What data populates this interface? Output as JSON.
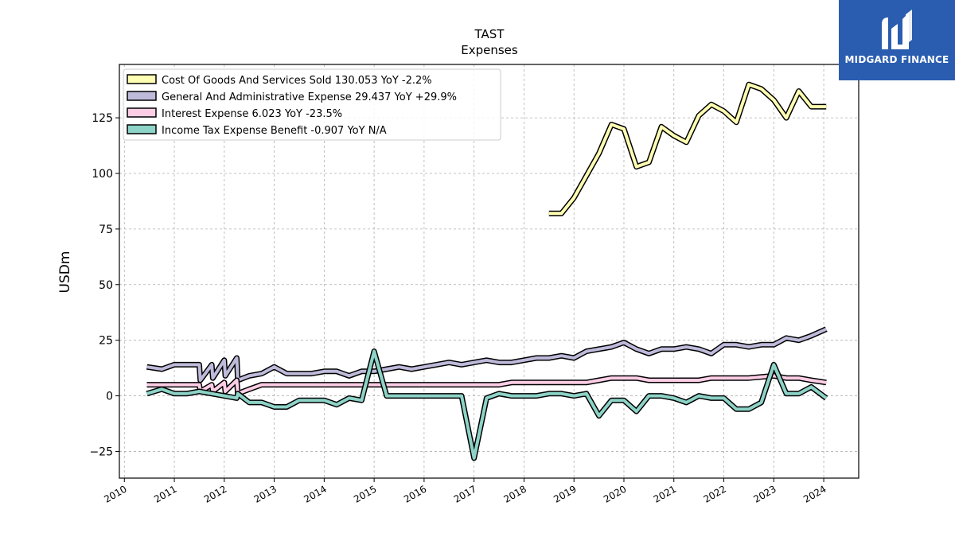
{
  "colors": {
    "background": "#ffffff",
    "grid": "#b0b0b0",
    "brand_box": "#2a5db0",
    "brand_text": "#ffffff"
  },
  "brand": {
    "name": "MIDGARD FINANCE",
    "icon": "midgard-logo-icon"
  },
  "chart_data": {
    "type": "line",
    "title": "TAST",
    "subtitle": "Expenses",
    "xlabel": "",
    "ylabel": "USDm",
    "xlim": [
      2009.9,
      2024.7
    ],
    "ylim": [
      -37,
      149
    ],
    "yticks": [
      -25,
      0,
      25,
      50,
      75,
      100,
      125
    ],
    "ytick_labels": [
      "−25",
      "0",
      "25",
      "50",
      "75",
      "100",
      "125"
    ],
    "xticks": [
      2010,
      2011,
      2012,
      2013,
      2014,
      2015,
      2016,
      2017,
      2018,
      2019,
      2020,
      2021,
      2022,
      2023,
      2024
    ],
    "xtick_labels": [
      "2010",
      "2011",
      "2012",
      "2013",
      "2014",
      "2015",
      "2016",
      "2017",
      "2018",
      "2019",
      "2020",
      "2021",
      "2022",
      "2023",
      "2024"
    ],
    "grid": true,
    "legend_position": "top-left",
    "series": [
      {
        "name": "Cost Of Goods And Services Sold",
        "legend": "Cost Of Goods And Services Sold  130.053 YoY -2.2%",
        "color": "#ffffb3",
        "points": [
          [
            2018.5,
            82
          ],
          [
            2018.75,
            82
          ],
          [
            2019.0,
            89
          ],
          [
            2019.25,
            99
          ],
          [
            2019.5,
            109
          ],
          [
            2019.75,
            122
          ],
          [
            2020.0,
            120
          ],
          [
            2020.25,
            103
          ],
          [
            2020.5,
            105
          ],
          [
            2020.75,
            121
          ],
          [
            2021.0,
            117
          ],
          [
            2021.25,
            114
          ],
          [
            2021.5,
            126
          ],
          [
            2021.75,
            131
          ],
          [
            2022.0,
            128
          ],
          [
            2022.25,
            123
          ],
          [
            2022.5,
            140
          ],
          [
            2022.75,
            138
          ],
          [
            2023.0,
            133
          ],
          [
            2023.25,
            125
          ],
          [
            2023.5,
            137
          ],
          [
            2023.75,
            130
          ],
          [
            2024.05,
            130
          ]
        ]
      },
      {
        "name": "General And Administrative Expense",
        "legend": "General And Administrative Expense  29.437 YoY +29.9%",
        "color": "#bebada",
        "points": [
          [
            2010.45,
            13
          ],
          [
            2010.75,
            12
          ],
          [
            2011.0,
            14
          ],
          [
            2011.25,
            14
          ],
          [
            2011.5,
            14
          ],
          [
            2011.52,
            7
          ],
          [
            2011.75,
            14
          ],
          [
            2011.77,
            8
          ],
          [
            2012.0,
            16
          ],
          [
            2012.02,
            9
          ],
          [
            2012.25,
            17
          ],
          [
            2012.27,
            7
          ],
          [
            2012.5,
            9
          ],
          [
            2012.75,
            10
          ],
          [
            2013.0,
            13
          ],
          [
            2013.25,
            10
          ],
          [
            2013.5,
            10
          ],
          [
            2013.75,
            10
          ],
          [
            2014.0,
            11
          ],
          [
            2014.25,
            11
          ],
          [
            2014.5,
            9
          ],
          [
            2014.75,
            11
          ],
          [
            2015.0,
            11
          ],
          [
            2015.25,
            12
          ],
          [
            2015.5,
            13
          ],
          [
            2015.75,
            12
          ],
          [
            2016.0,
            13
          ],
          [
            2016.25,
            14
          ],
          [
            2016.5,
            15
          ],
          [
            2016.75,
            14
          ],
          [
            2017.0,
            15
          ],
          [
            2017.25,
            16
          ],
          [
            2017.5,
            15
          ],
          [
            2017.75,
            15
          ],
          [
            2018.0,
            16
          ],
          [
            2018.25,
            17
          ],
          [
            2018.5,
            17
          ],
          [
            2018.75,
            18
          ],
          [
            2019.0,
            17
          ],
          [
            2019.25,
            20
          ],
          [
            2019.5,
            21
          ],
          [
            2019.75,
            22
          ],
          [
            2020.0,
            24
          ],
          [
            2020.25,
            21
          ],
          [
            2020.5,
            19
          ],
          [
            2020.75,
            21
          ],
          [
            2021.0,
            21
          ],
          [
            2021.25,
            22
          ],
          [
            2021.5,
            21
          ],
          [
            2021.75,
            19
          ],
          [
            2022.0,
            23
          ],
          [
            2022.25,
            23
          ],
          [
            2022.5,
            22
          ],
          [
            2022.75,
            23
          ],
          [
            2023.0,
            23
          ],
          [
            2023.25,
            26
          ],
          [
            2023.5,
            25
          ],
          [
            2023.75,
            27
          ],
          [
            2024.05,
            30
          ]
        ]
      },
      {
        "name": "Interest Expense",
        "legend": "Interest Expense  6.023 YoY -23.5%",
        "color": "#fccde5",
        "points": [
          [
            2010.45,
            5
          ],
          [
            2010.75,
            5
          ],
          [
            2011.0,
            5
          ],
          [
            2011.25,
            5
          ],
          [
            2011.5,
            5
          ],
          [
            2011.52,
            2
          ],
          [
            2011.75,
            5
          ],
          [
            2011.77,
            2
          ],
          [
            2012.0,
            6
          ],
          [
            2012.02,
            2
          ],
          [
            2012.25,
            7
          ],
          [
            2012.27,
            1
          ],
          [
            2012.5,
            3
          ],
          [
            2012.75,
            5
          ],
          [
            2013.0,
            5
          ],
          [
            2013.5,
            5
          ],
          [
            2014.0,
            5
          ],
          [
            2014.5,
            5
          ],
          [
            2015.0,
            5
          ],
          [
            2015.5,
            5
          ],
          [
            2016.0,
            5
          ],
          [
            2016.5,
            5
          ],
          [
            2017.0,
            5
          ],
          [
            2017.5,
            5
          ],
          [
            2017.75,
            6
          ],
          [
            2018.0,
            6
          ],
          [
            2018.5,
            6
          ],
          [
            2019.0,
            6
          ],
          [
            2019.25,
            6
          ],
          [
            2019.5,
            7
          ],
          [
            2019.75,
            8
          ],
          [
            2020.0,
            8
          ],
          [
            2020.25,
            8
          ],
          [
            2020.5,
            7
          ],
          [
            2020.75,
            7
          ],
          [
            2021.0,
            7
          ],
          [
            2021.25,
            7
          ],
          [
            2021.5,
            7
          ],
          [
            2021.75,
            8
          ],
          [
            2022.0,
            8
          ],
          [
            2022.5,
            8
          ],
          [
            2023.0,
            9
          ],
          [
            2023.25,
            8
          ],
          [
            2023.5,
            8
          ],
          [
            2023.75,
            7
          ],
          [
            2024.05,
            6
          ]
        ]
      },
      {
        "name": "Income Tax Expense Benefit",
        "legend": "Income Tax Expense Benefit  -0.907 YoY N/A",
        "color": "#8dd3c7",
        "points": [
          [
            2010.45,
            1
          ],
          [
            2010.75,
            3
          ],
          [
            2011.0,
            1
          ],
          [
            2011.25,
            1
          ],
          [
            2011.5,
            2
          ],
          [
            2011.75,
            1
          ],
          [
            2012.0,
            0
          ],
          [
            2012.25,
            -1
          ],
          [
            2012.27,
            1
          ],
          [
            2012.5,
            -3
          ],
          [
            2012.75,
            -3
          ],
          [
            2013.0,
            -5
          ],
          [
            2013.25,
            -5
          ],
          [
            2013.5,
            -2
          ],
          [
            2013.75,
            -2
          ],
          [
            2014.0,
            -2
          ],
          [
            2014.25,
            -4
          ],
          [
            2014.5,
            -1
          ],
          [
            2014.75,
            -2
          ],
          [
            2015.0,
            20
          ],
          [
            2015.25,
            0
          ],
          [
            2015.5,
            0
          ],
          [
            2016.0,
            0
          ],
          [
            2016.5,
            0
          ],
          [
            2016.75,
            0
          ],
          [
            2017.0,
            -28
          ],
          [
            2017.25,
            -1
          ],
          [
            2017.5,
            1
          ],
          [
            2017.75,
            0
          ],
          [
            2018.0,
            0
          ],
          [
            2018.25,
            0
          ],
          [
            2018.5,
            1
          ],
          [
            2018.75,
            1
          ],
          [
            2019.0,
            0
          ],
          [
            2019.25,
            1
          ],
          [
            2019.5,
            -9
          ],
          [
            2019.75,
            -2
          ],
          [
            2020.0,
            -2
          ],
          [
            2020.25,
            -7
          ],
          [
            2020.5,
            0
          ],
          [
            2020.75,
            0
          ],
          [
            2021.0,
            -1
          ],
          [
            2021.25,
            -3
          ],
          [
            2021.5,
            0
          ],
          [
            2021.75,
            -1
          ],
          [
            2022.0,
            -1
          ],
          [
            2022.25,
            -6
          ],
          [
            2022.5,
            -6
          ],
          [
            2022.75,
            -3
          ],
          [
            2023.0,
            14
          ],
          [
            2023.25,
            1
          ],
          [
            2023.5,
            1
          ],
          [
            2023.75,
            4
          ],
          [
            2024.05,
            -1
          ]
        ]
      }
    ]
  }
}
